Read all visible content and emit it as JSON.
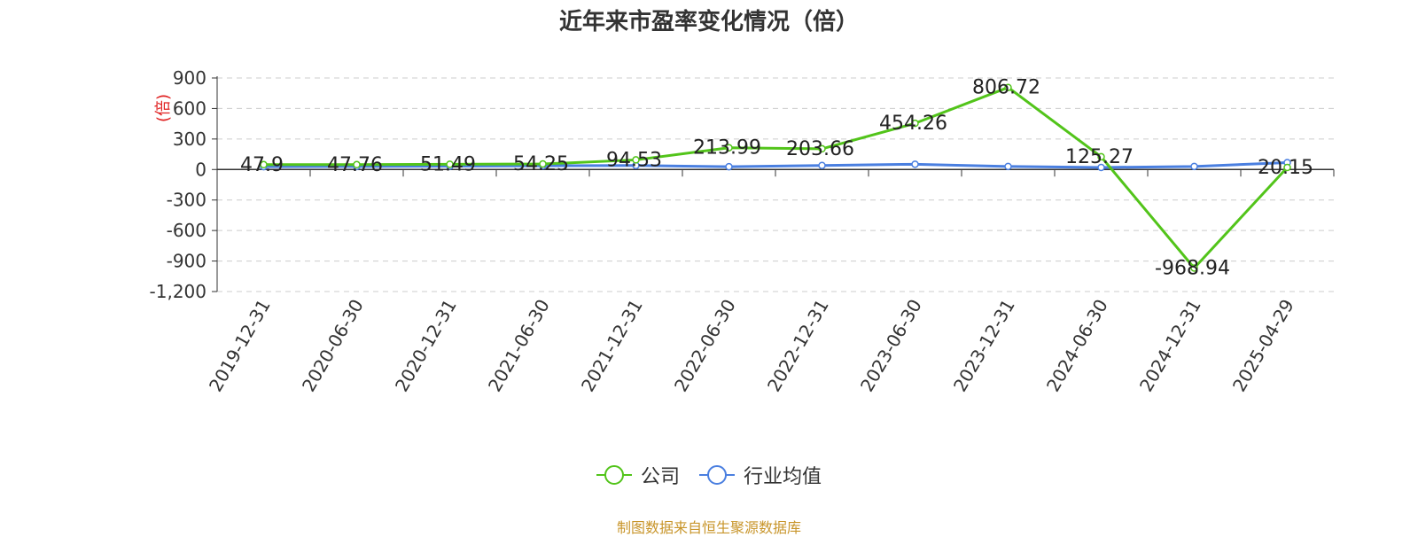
{
  "chart_data": {
    "type": "line",
    "title": "近年来市盈率变化情况（倍）",
    "ylabel": "(倍)",
    "ylim": [
      -1200,
      900
    ],
    "yticks": [
      900,
      600,
      300,
      0,
      -300,
      -600,
      -900,
      -1200
    ],
    "ytick_labels": [
      "900",
      "600",
      "300",
      "0",
      "-300",
      "-600",
      "-900",
      "-1,200"
    ],
    "categories": [
      "2019-12-31",
      "2020-06-30",
      "2020-12-31",
      "2021-06-30",
      "2021-12-31",
      "2022-06-30",
      "2022-12-31",
      "2023-06-30",
      "2023-12-31",
      "2024-06-30",
      "2024-12-31",
      "2025-04-29"
    ],
    "series": [
      {
        "name": "公司",
        "color": "#52c41a",
        "values": [
          47.9,
          47.76,
          51.49,
          54.25,
          94.53,
          213.99,
          203.66,
          454.26,
          806.72,
          125.27,
          -968.94,
          20.15
        ],
        "labels": [
          "47.9",
          "47.76",
          "51.49",
          "54.25",
          "94.53",
          "213.99",
          "203.66",
          "454.26",
          "806.72",
          "125.27",
          "-968.94",
          "20.15"
        ]
      },
      {
        "name": "行业均值",
        "color": "#4a7fe0",
        "values": [
          28,
          30,
          33,
          36,
          40,
          27,
          40,
          52,
          30,
          20,
          30,
          68
        ]
      }
    ],
    "grid": true,
    "legend_position": "bottom"
  },
  "source_note": "制图数据来自恒生聚源数据库"
}
